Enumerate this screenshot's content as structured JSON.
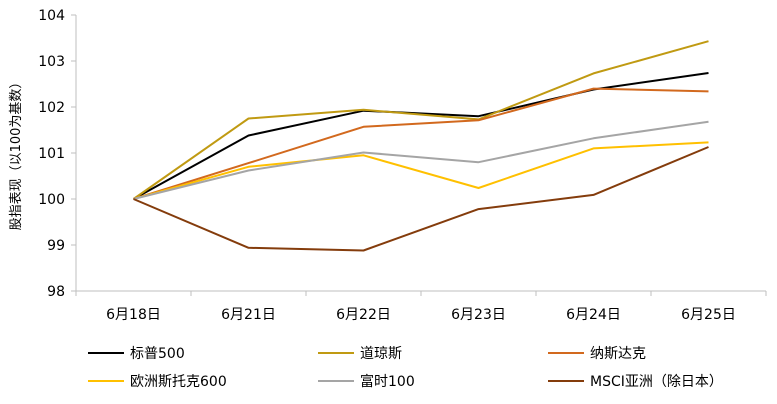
{
  "chart_data": {
    "type": "line",
    "categories": [
      "6月18日",
      "6月21日",
      "6月22日",
      "6月23日",
      "6月24日",
      "6月25日"
    ],
    "ylabel": "股指表现（以100为基数）",
    "ylim": [
      98,
      104
    ],
    "yticks": [
      "98",
      "99",
      "100",
      "101",
      "102",
      "103",
      "104"
    ],
    "grid": false,
    "legend_position": "bottom",
    "series": [
      {
        "name": "标普500",
        "color": "#000000",
        "values": [
          100,
          101.38,
          101.92,
          101.8,
          102.38,
          102.74
        ]
      },
      {
        "name": "道琼斯",
        "color": "#C09A12",
        "values": [
          100,
          101.75,
          101.94,
          101.73,
          102.73,
          103.43
        ]
      },
      {
        "name": "纳斯达克",
        "color": "#D2691E",
        "values": [
          100,
          100.78,
          101.57,
          101.71,
          102.4,
          102.34
        ]
      },
      {
        "name": "欧洲斯托克600",
        "color": "#FFC000",
        "values": [
          100,
          100.7,
          100.95,
          100.24,
          101.1,
          101.23
        ]
      },
      {
        "name": "富时100",
        "color": "#A5A5A5",
        "values": [
          100,
          100.62,
          101.01,
          100.8,
          101.32,
          101.68
        ]
      },
      {
        "name": "MSCI亚洲（除日本）",
        "color": "#843C0C",
        "values": [
          100,
          98.94,
          98.88,
          99.78,
          100.09,
          101.13
        ]
      }
    ]
  }
}
